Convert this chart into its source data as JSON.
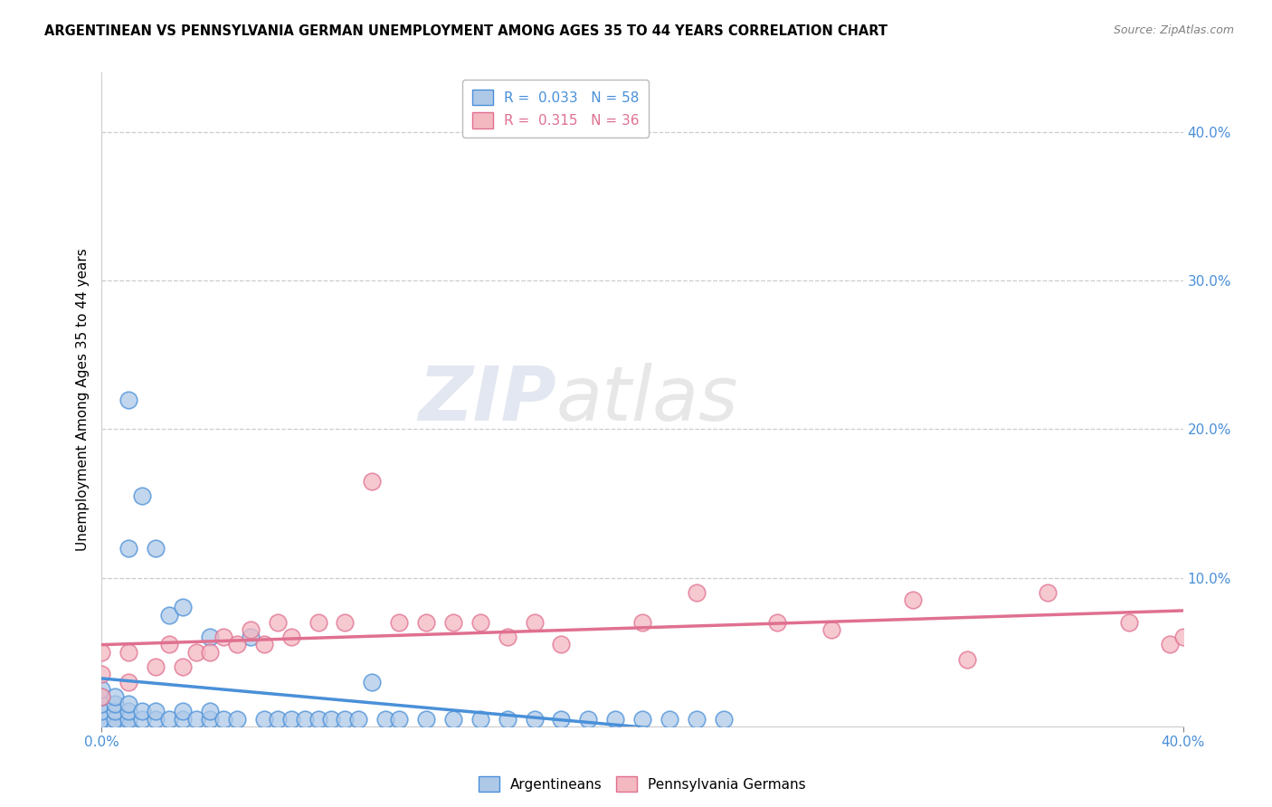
{
  "title": "ARGENTINEAN VS PENNSYLVANIA GERMAN UNEMPLOYMENT AMONG AGES 35 TO 44 YEARS CORRELATION CHART",
  "source": "Source: ZipAtlas.com",
  "ylabel": "Unemployment Among Ages 35 to 44 years",
  "ytick_vals": [
    0.0,
    0.1,
    0.2,
    0.3,
    0.4
  ],
  "ytick_labels": [
    "",
    "10.0%",
    "20.0%",
    "30.0%",
    "40.0%"
  ],
  "xlim": [
    0.0,
    0.4
  ],
  "ylim": [
    0.0,
    0.44
  ],
  "blue_fill": "#aec9e8",
  "blue_edge": "#4a90d9",
  "pink_fill": "#f4b8c1",
  "pink_edge": "#e07090",
  "blue_line": "#4a90d9",
  "pink_line": "#e07090",
  "tick_color": "#4a90d9",
  "arg_x": [
    0.0,
    0.0,
    0.0,
    0.0,
    0.0,
    0.0,
    0.005,
    0.005,
    0.005,
    0.005,
    0.005,
    0.01,
    0.01,
    0.01,
    0.01,
    0.01,
    0.01,
    0.015,
    0.015,
    0.015,
    0.02,
    0.02,
    0.02,
    0.025,
    0.025,
    0.03,
    0.03,
    0.03,
    0.035,
    0.04,
    0.04,
    0.04,
    0.045,
    0.05,
    0.055,
    0.06,
    0.065,
    0.07,
    0.075,
    0.08,
    0.085,
    0.09,
    0.095,
    0.1,
    0.105,
    0.11,
    0.12,
    0.13,
    0.14,
    0.15,
    0.16,
    0.17,
    0.18,
    0.19,
    0.2,
    0.21,
    0.22,
    0.23
  ],
  "arg_y": [
    0.0,
    0.005,
    0.01,
    0.015,
    0.02,
    0.025,
    0.0,
    0.005,
    0.01,
    0.015,
    0.02,
    0.0,
    0.005,
    0.01,
    0.015,
    0.12,
    0.22,
    0.005,
    0.01,
    0.155,
    0.005,
    0.01,
    0.12,
    0.005,
    0.075,
    0.005,
    0.01,
    0.08,
    0.005,
    0.005,
    0.01,
    0.06,
    0.005,
    0.005,
    0.06,
    0.005,
    0.005,
    0.005,
    0.005,
    0.005,
    0.005,
    0.005,
    0.005,
    0.03,
    0.005,
    0.005,
    0.005,
    0.005,
    0.005,
    0.005,
    0.005,
    0.005,
    0.005,
    0.005,
    0.005,
    0.005,
    0.005,
    0.005
  ],
  "pen_x": [
    0.0,
    0.0,
    0.0,
    0.01,
    0.01,
    0.02,
    0.025,
    0.03,
    0.035,
    0.04,
    0.045,
    0.05,
    0.055,
    0.06,
    0.065,
    0.07,
    0.08,
    0.09,
    0.1,
    0.11,
    0.12,
    0.13,
    0.14,
    0.15,
    0.16,
    0.17,
    0.2,
    0.22,
    0.25,
    0.27,
    0.3,
    0.32,
    0.35,
    0.38,
    0.395,
    0.4
  ],
  "pen_y": [
    0.02,
    0.035,
    0.05,
    0.03,
    0.05,
    0.04,
    0.055,
    0.04,
    0.05,
    0.05,
    0.06,
    0.055,
    0.065,
    0.055,
    0.07,
    0.06,
    0.07,
    0.07,
    0.165,
    0.07,
    0.07,
    0.07,
    0.07,
    0.06,
    0.07,
    0.055,
    0.07,
    0.09,
    0.07,
    0.065,
    0.085,
    0.045,
    0.09,
    0.07,
    0.055,
    0.06
  ]
}
